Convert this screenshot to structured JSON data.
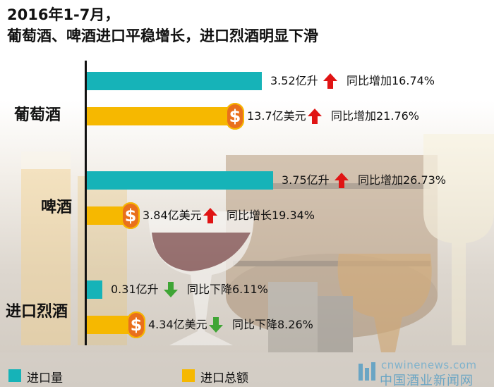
{
  "title": {
    "line1": "2016年1-7月，",
    "line2": "葡萄酒、啤酒进口平稳增长，进口烈酒明显下滑"
  },
  "colors": {
    "volume": "#16b3b8",
    "value": "#f6b800",
    "up": "#e01414",
    "down": "#3fa535",
    "dollar": "#e9701c"
  },
  "legend": {
    "volume_label": "进口量",
    "value_label": "进口总额"
  },
  "watermark": {
    "url": "cnwinenews.com",
    "name": "中国酒业新闻网"
  },
  "chart_data": {
    "type": "bar",
    "orientation": "horizontal",
    "categories": [
      "葡萄酒",
      "啤酒",
      "进口烈酒"
    ],
    "series": [
      {
        "name": "进口量",
        "values": [
          3.52,
          3.75,
          0.31
        ],
        "unit": "亿升",
        "labels": [
          "3.52亿升",
          "3.75亿升",
          "0.31亿升"
        ]
      },
      {
        "name": "进口总额",
        "values": [
          13.7,
          3.84,
          4.34
        ],
        "unit": "亿美元",
        "labels": [
          "13.7亿美元",
          "3.84亿美元",
          "4.34亿美元"
        ]
      }
    ],
    "annotations": [
      {
        "category": "葡萄酒",
        "series": "进口量",
        "direction": "up",
        "text": "同比增加16.74%"
      },
      {
        "category": "葡萄酒",
        "series": "进口总额",
        "direction": "up",
        "text": "同比增加21.76%"
      },
      {
        "category": "啤酒",
        "series": "进口量",
        "direction": "up",
        "text": "同比增加26.73%"
      },
      {
        "category": "啤酒",
        "series": "进口总额",
        "direction": "up",
        "text": "同比增长19.34%"
      },
      {
        "category": "进口烈酒",
        "series": "进口量",
        "direction": "down",
        "text": "同比下降6.11%"
      },
      {
        "category": "进口烈酒",
        "series": "进口总额",
        "direction": "down",
        "text": "同比下降8.26%"
      }
    ],
    "grid": false,
    "legend_position": "bottom-left"
  }
}
